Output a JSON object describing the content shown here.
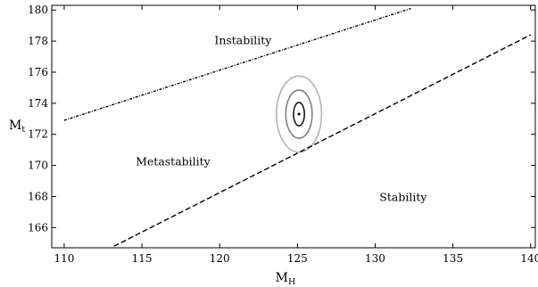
{
  "chart_data": {
    "type": "line",
    "title": "",
    "xlabel": "M",
    "xlabel_subscript": "H",
    "ylabel": "M",
    "ylabel_subscript": "t",
    "xlim": [
      109.2,
      140.3
    ],
    "ylim": [
      164.7,
      180.3
    ],
    "xticks": [
      110,
      115,
      120,
      125,
      130,
      135,
      140
    ],
    "yticks": [
      166,
      168,
      170,
      172,
      174,
      176,
      178,
      180
    ],
    "grid": false,
    "legend": "none",
    "series": [
      {
        "style": "dash-dot",
        "color": "#000000",
        "points": [
          [
            110.0,
            172.9
          ],
          [
            132.3,
            180.1
          ]
        ]
      },
      {
        "style": "dashed",
        "color": "#000000",
        "points": [
          [
            113.2,
            164.8
          ],
          [
            140.0,
            178.4
          ]
        ]
      }
    ],
    "central_point": {
      "x": 125.1,
      "y": 173.3,
      "color": "#000000"
    },
    "contours": [
      {
        "rx": 0.35,
        "ry": 0.75,
        "color": "#1a1a1a"
      },
      {
        "rx": 0.85,
        "ry": 1.55,
        "color": "#808080"
      },
      {
        "rx": 1.45,
        "ry": 2.45,
        "color": "#b3b3b3"
      }
    ],
    "annotations": [
      {
        "text": "Instability",
        "x": 121.5,
        "y": 177.8
      },
      {
        "text": "Metastability",
        "x": 117.0,
        "y": 170.0
      },
      {
        "text": "Stability",
        "x": 131.8,
        "y": 167.7
      }
    ]
  }
}
